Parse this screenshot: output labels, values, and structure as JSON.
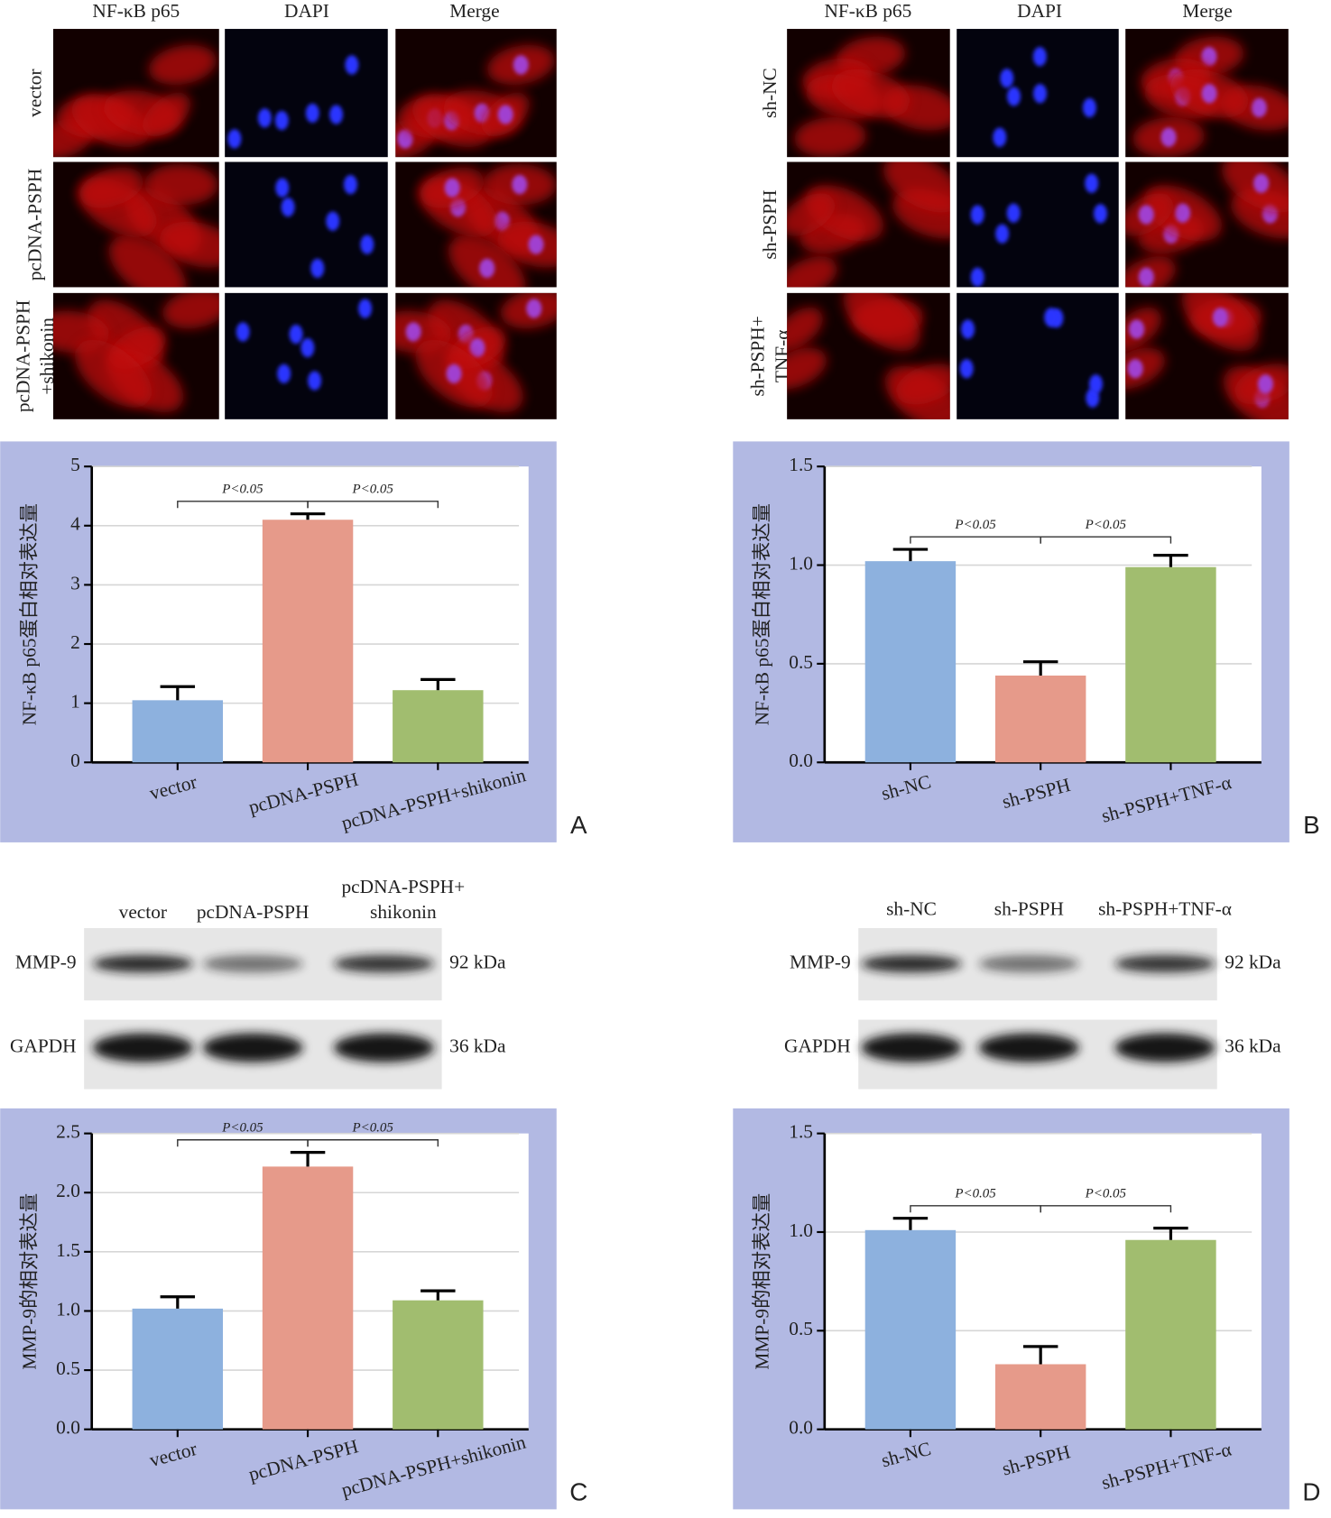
{
  "micrographs": [
    {
      "columns": [
        "NF-κB p65",
        "DAPI",
        "Merge"
      ],
      "rows": [
        [
          "vector"
        ],
        [
          "pcDNA-PSPH"
        ],
        [
          "pcDNA-PSPH",
          "+shikonin"
        ]
      ]
    },
    {
      "columns": [
        "NF-κB p65",
        "DAPI",
        "Merge"
      ],
      "rows": [
        [
          "sh-NC"
        ],
        [
          "sh-PSPH"
        ],
        [
          "sh-PSPH+",
          "TNF-α"
        ]
      ]
    }
  ],
  "blots": [
    {
      "lanes": [
        [
          "vector"
        ],
        [
          "pcDNA-PSPH"
        ],
        [
          "pcDNA-PSPH+",
          "shikonin"
        ]
      ],
      "proteins": [
        {
          "name": "MMP-9",
          "size": "92 kDa"
        },
        {
          "name": "GAPDH",
          "size": "36 kDa"
        }
      ]
    },
    {
      "lanes": [
        [
          "sh-NC"
        ],
        [
          "sh-PSPH"
        ],
        [
          "sh-PSPH+TNF-α"
        ]
      ],
      "proteins": [
        {
          "name": "MMP-9",
          "size": "92 kDa"
        },
        {
          "name": "GAPDH",
          "size": "36 kDa"
        }
      ]
    }
  ],
  "chart_data": [
    {
      "type": "bar",
      "panel": "A",
      "ylabel": "NF-κB p65蛋白相对表达量",
      "categories": [
        "vector",
        "pcDNA-PSPH",
        "pcDNA-PSPH+shikonin"
      ],
      "values": [
        1.05,
        4.1,
        1.22
      ],
      "errors": [
        0.23,
        0.1,
        0.18
      ],
      "colors": [
        "#8db1de",
        "#e69a8a",
        "#a1bd6f"
      ],
      "ylim": [
        0,
        5
      ],
      "yticks": [
        0,
        1,
        2,
        3,
        4,
        5
      ],
      "grid": true,
      "annotations": [
        "P<0.05",
        "P<0.05"
      ]
    },
    {
      "type": "bar",
      "panel": "B",
      "ylabel": "NF-κB p65蛋白相对表达量",
      "categories": [
        "sh-NC",
        "sh-PSPH",
        "sh-PSPH+TNF-α"
      ],
      "values": [
        1.02,
        0.44,
        0.99
      ],
      "errors": [
        0.06,
        0.07,
        0.06
      ],
      "colors": [
        "#8db1de",
        "#e69a8a",
        "#a1bd6f"
      ],
      "ylim": [
        0,
        1.5
      ],
      "yticks": [
        {
          "value": 0,
          "label": "0.0"
        },
        0.5,
        {
          "value": 1,
          "label": "1.0"
        },
        1.5
      ],
      "grid": true,
      "annotations": [
        "P<0.05",
        "P<0.05"
      ]
    },
    {
      "type": "bar",
      "panel": "C",
      "ylabel": "MMP-9的相对表达量",
      "categories": [
        "vector",
        "pcDNA-PSPH",
        "pcDNA-PSPH+shikonin"
      ],
      "values": [
        1.02,
        2.22,
        1.09
      ],
      "errors": [
        0.1,
        0.12,
        0.08
      ],
      "colors": [
        "#8db1de",
        "#e69a8a",
        "#a1bd6f"
      ],
      "ylim": [
        0,
        2.5
      ],
      "yticks": [
        {
          "value": 0,
          "label": "0.0"
        },
        0.5,
        {
          "value": 1,
          "label": "1.0"
        },
        1.5,
        {
          "value": 2,
          "label": "2.0"
        },
        2.5
      ],
      "grid": true,
      "annotations": [
        "P<0.05",
        "P<0.05"
      ]
    },
    {
      "type": "bar",
      "panel": "D",
      "ylabel": "MMP-9的相对表达量",
      "categories": [
        "sh-NC",
        "sh-PSPH",
        "sh-PSPH+TNF-α"
      ],
      "values": [
        1.01,
        0.33,
        0.96
      ],
      "errors": [
        0.06,
        0.09,
        0.06
      ],
      "colors": [
        "#8db1de",
        "#e69a8a",
        "#a1bd6f"
      ],
      "ylim": [
        0,
        1.5
      ],
      "yticks": [
        {
          "value": 0,
          "label": "0.0"
        },
        0.5,
        {
          "value": 1,
          "label": "1.0"
        },
        1.5
      ],
      "grid": true,
      "annotations": [
        "P<0.05",
        "P<0.05"
      ]
    }
  ]
}
